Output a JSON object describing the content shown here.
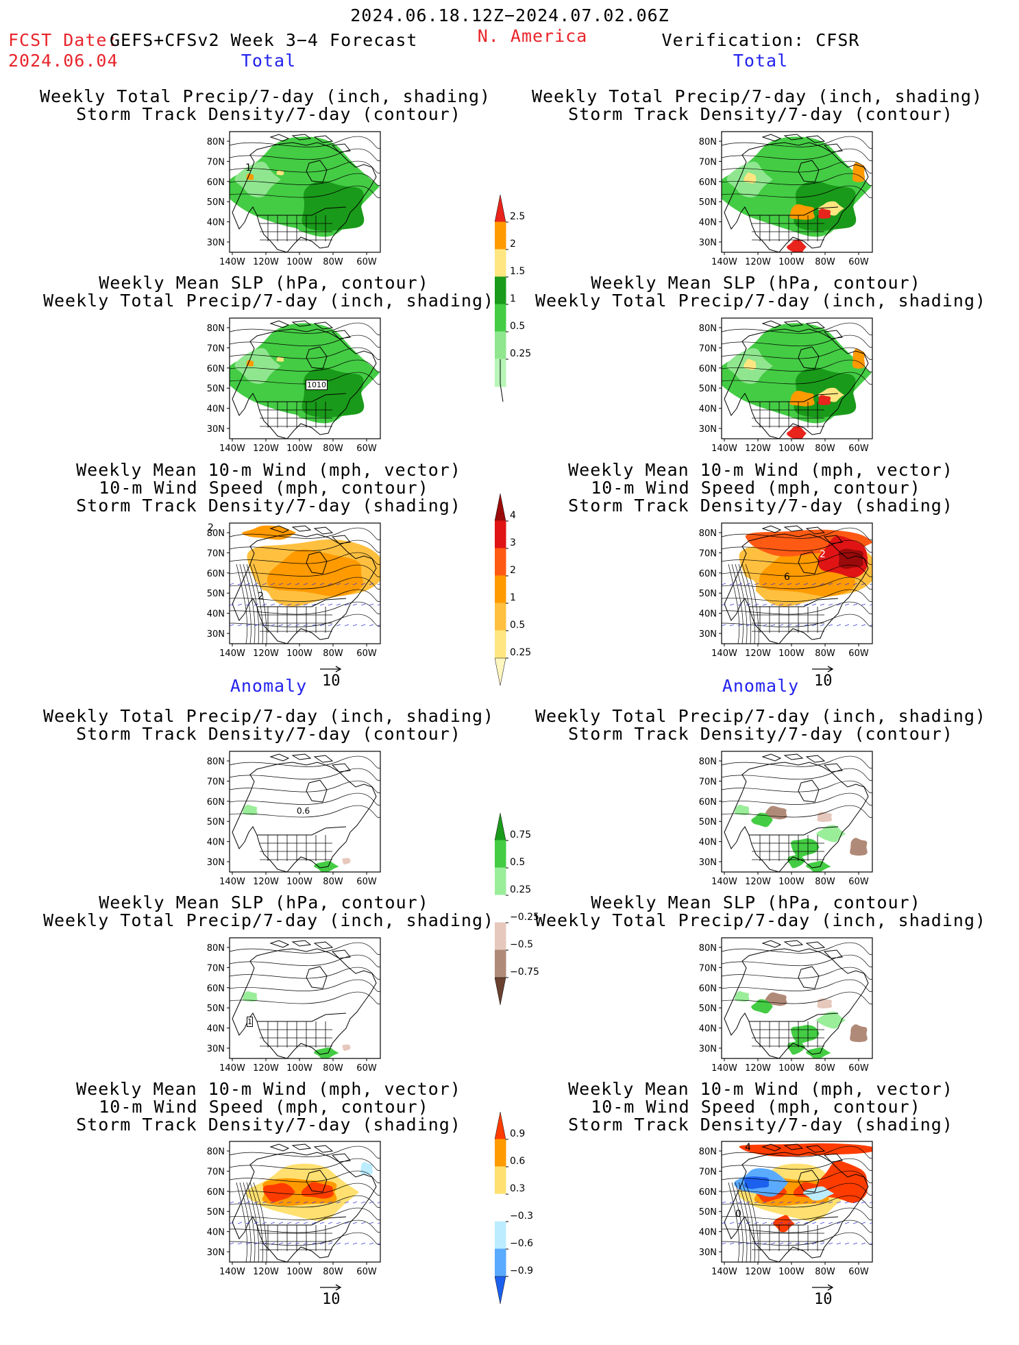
{
  "header": {
    "date_range": "2024.06.18.12Z−2024.07.02.06Z",
    "fcst_label": "FCST Date:",
    "model": "GEFS+CFSv2 Week 3−4 Forecast",
    "fcst_date": "2024.06.04",
    "region": "N. America",
    "verification": "Verification: CFSR"
  },
  "sections": {
    "total": "Total",
    "anomaly": "Anomaly"
  },
  "panel_titles": {
    "precip_storm": [
      "Weekly Total Precip/7-day (inch, shading)",
      "Storm Track Density/7-day (contour)"
    ],
    "slp_precip": [
      "Weekly Mean SLP (hPa, contour)",
      "Weekly Total Precip/7-day (inch, shading)"
    ],
    "wind_storm": [
      "Weekly Mean 10-m Wind (mph, vector)",
      "10-m Wind Speed (mph, contour)",
      "Storm Track Density/7-day (shading)"
    ]
  },
  "axes": {
    "lat": [
      "80N",
      "70N",
      "60N",
      "50N",
      "40N",
      "30N"
    ],
    "lon": [
      "140W",
      "120W",
      "100W",
      "80W",
      "60W"
    ]
  },
  "contour_labels": {
    "storm_total_left": "1",
    "slp_total_left": "1010",
    "wind_total_left_a": "2",
    "wind_total_left_b": "2",
    "wind_total_right_a": "2",
    "wind_total_right_b": "6",
    "storm_anom_left": "0.6",
    "wind_anom_right": "4",
    "wind_anom_right_b": "0",
    "slp_anom_left": "1"
  },
  "vector_ref": "10",
  "colorbars": {
    "precip_total": {
      "labels": [
        "2.5",
        "2",
        "1.5",
        "1",
        "0.5",
        "0.25"
      ],
      "colors": [
        "#e8241c",
        "#ff9a00",
        "#ffe680",
        "#1a9a1a",
        "#44cc44",
        "#8fe68f",
        "#b8f5b8"
      ]
    },
    "storm_total": {
      "labels": [
        "4",
        "3",
        "2",
        "1",
        "0.5",
        "0.25"
      ],
      "colors": [
        "#9a0a0a",
        "#e01414",
        "#ff5a14",
        "#ff9a00",
        "#ffc040",
        "#ffe680",
        "#fff6c0"
      ]
    },
    "precip_anom": {
      "labels": [
        "0.75",
        "0.5",
        "0.25",
        "−0.25",
        "−0.5",
        "−0.75"
      ],
      "colors": [
        "#1a9a1a",
        "#44cc44",
        "#9aee9a",
        "#ffffff",
        "#e6c8bc",
        "#b08a78",
        "#6a4030"
      ]
    },
    "storm_anom": {
      "labels": [
        "0.9",
        "0.6",
        "0.3",
        "−0.3",
        "−0.6",
        "−0.9"
      ],
      "colors": [
        "#ff3c00",
        "#ff9a00",
        "#ffe070",
        "#ffffff",
        "#bcecff",
        "#5aaaff",
        "#1c60ee"
      ]
    }
  },
  "colors": {
    "fcst_red": "#e8242a",
    "section_blue": "#2222ee"
  }
}
